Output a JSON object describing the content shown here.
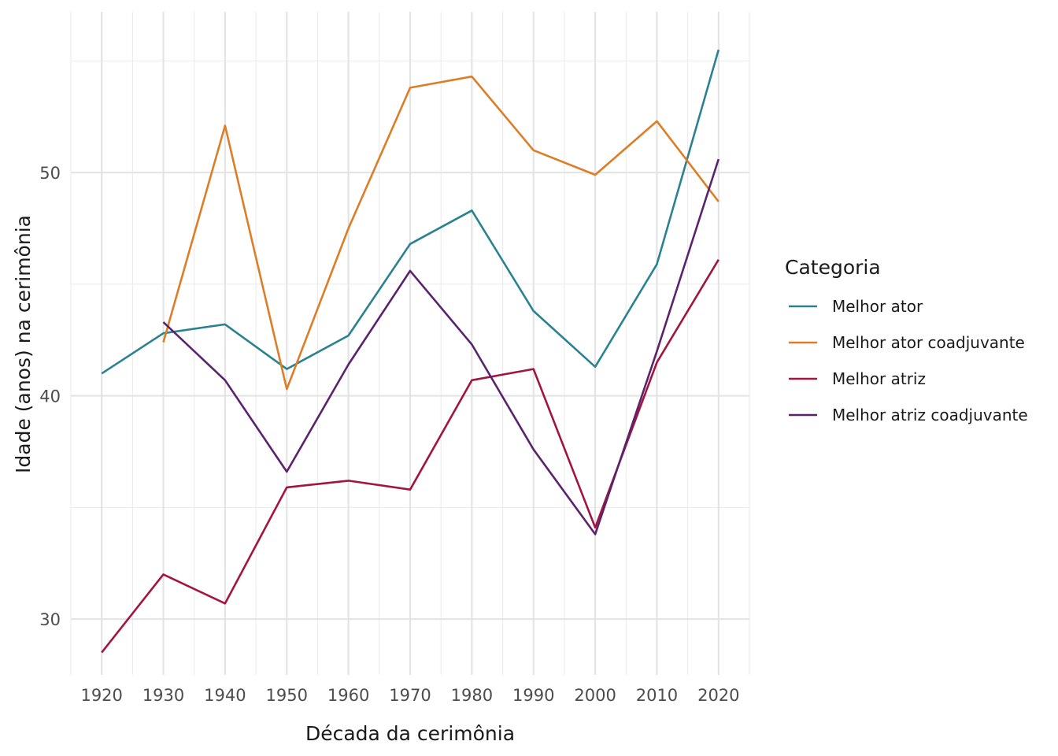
{
  "chart_data": {
    "type": "line",
    "xlabel": "Década da cerimônia",
    "ylabel": "Idade (anos) na cerimônia",
    "x": [
      1920,
      1930,
      1940,
      1950,
      1960,
      1970,
      1980,
      1990,
      2000,
      2010,
      2020
    ],
    "x_tick_labels": [
      "1920",
      "1930",
      "1940",
      "1950",
      "1960",
      "1970",
      "1980",
      "1990",
      "2000",
      "2010",
      "2020"
    ],
    "xlim": [
      1915,
      2020
    ],
    "ylim": [
      27.5,
      57.2
    ],
    "y_major_ticks": [
      30,
      40,
      50
    ],
    "y_minor_ticks": [
      35,
      45,
      55
    ],
    "y_tick_labels": [
      "30",
      "40",
      "50"
    ],
    "grid": true,
    "legend": {
      "title": "Categoria",
      "placement": "right"
    },
    "series": [
      {
        "name": "Melhor ator",
        "color": "#2a8290",
        "values": [
          41.0,
          42.8,
          43.2,
          41.2,
          42.7,
          46.8,
          48.3,
          43.8,
          41.3,
          45.9,
          55.5
        ]
      },
      {
        "name": "Melhor ator coadjuvante",
        "color": "#dc7e27",
        "values": [
          null,
          42.4,
          52.1,
          40.3,
          47.5,
          53.8,
          54.3,
          51.0,
          49.9,
          52.3,
          48.7
        ]
      },
      {
        "name": "Melhor atriz",
        "color": "#a2153f",
        "values": [
          28.5,
          32.0,
          30.7,
          35.9,
          36.2,
          35.8,
          40.7,
          41.2,
          34.1,
          41.5,
          46.1
        ]
      },
      {
        "name": "Melhor atriz coadjuvante",
        "color": "#5a236c",
        "values": [
          null,
          43.3,
          40.7,
          36.6,
          41.4,
          45.6,
          42.3,
          37.6,
          33.8,
          42.0,
          50.6
        ]
      }
    ]
  }
}
